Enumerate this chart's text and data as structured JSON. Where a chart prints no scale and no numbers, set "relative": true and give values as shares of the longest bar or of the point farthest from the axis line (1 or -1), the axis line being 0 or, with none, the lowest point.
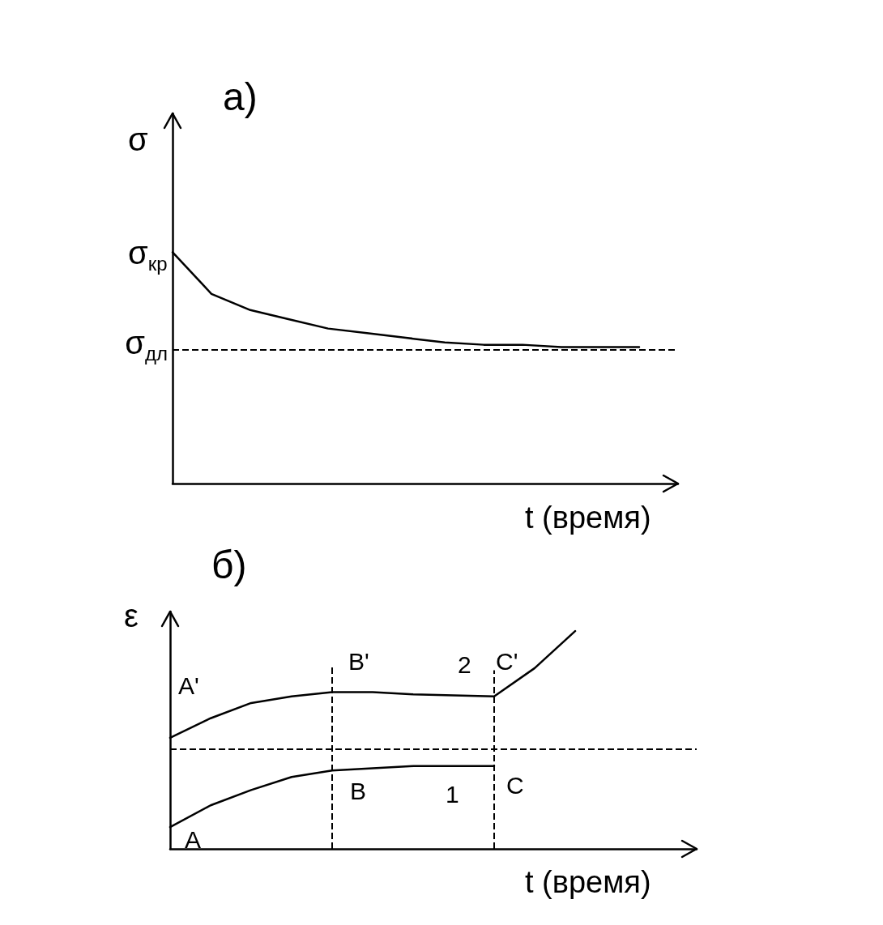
{
  "chart_data": [
    {
      "type": "line",
      "title": "а)",
      "ylabel": "σ",
      "xlabel": "t (время)",
      "relative": true,
      "legend": false,
      "grid": false,
      "marker": "none",
      "categories": [
        null,
        null,
        null,
        null,
        null,
        null,
        null,
        null,
        null,
        null,
        null,
        null,
        null,
        null
      ],
      "series": [
        {
          "color": "#000000",
          "line_style": "solid",
          "values": [
            1.0,
            0.82,
            0.75,
            0.71,
            0.67,
            0.65,
            0.63,
            0.61,
            0.6,
            0.6,
            0.59,
            0.59,
            0.59,
            null
          ]
        }
      ],
      "ref_lines": [
        {
          "axis": "y",
          "value": 0.58,
          "label": "σ$_{дл}$",
          "color": "#000000",
          "line_style": "dashed"
        }
      ],
      "annotations": [
        "σ$_{кр}$"
      ]
    },
    {
      "type": "line",
      "title": "б)",
      "ylabel": "ε",
      "xlabel": "t (время)",
      "relative": true,
      "legend": false,
      "grid": false,
      "marker": "none",
      "categories": [
        null,
        null,
        null,
        null,
        null,
        null,
        null,
        null,
        null,
        null,
        null,
        null,
        null,
        null
      ],
      "series": [
        {
          "name": "1",
          "color": "#000000",
          "line_style": "solid",
          "values": [
            0.1,
            0.2,
            0.27,
            0.33,
            0.36,
            0.37,
            0.38,
            0.38,
            0.38,
            null,
            null,
            null,
            null,
            null
          ]
        },
        {
          "name": "2",
          "color": "#000000",
          "line_style": "solid",
          "values": [
            0.51,
            0.6,
            0.67,
            0.7,
            0.72,
            0.72,
            0.71,
            0.705,
            0.7,
            0.83,
            1.0,
            null,
            null,
            null
          ]
        }
      ],
      "ref_lines": [
        {
          "axis": "y",
          "value": 0.46,
          "color": "#000000",
          "line_style": "dashed"
        }
      ],
      "annotations": [
        "A",
        "A'",
        "B",
        "B'",
        "C",
        "C'"
      ]
    }
  ]
}
